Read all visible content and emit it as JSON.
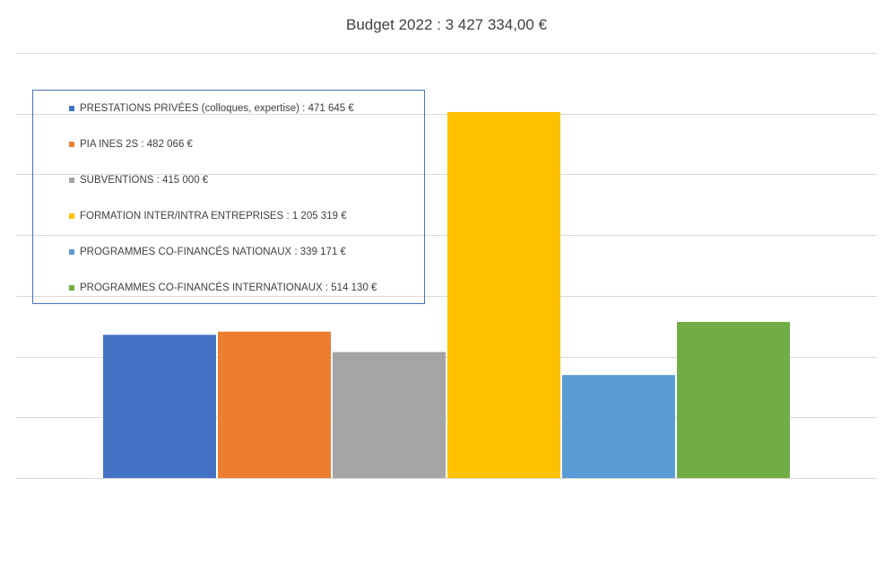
{
  "chart_data": {
    "type": "bar",
    "title": "Budget 2022 : 3 427 334,00 €",
    "xlabel": "",
    "ylabel": "",
    "ylim": [
      0,
      1400000
    ],
    "grid": true,
    "legend_position": "top-left",
    "series": [
      {
        "name": "PRESTATIONS PRIVÉES (colloques, expertise) : 471 645 €",
        "value": 471645,
        "color": "#4472c4"
      },
      {
        "name": "PIA INES 2S : 482 066 €",
        "value": 482066,
        "color": "#ed7d31"
      },
      {
        "name": "SUBVENTIONS : 415 000 €",
        "value": 415000,
        "color": "#a5a5a5"
      },
      {
        "name": "FORMATION INTER/INTRA ENTREPRISES : 1 205 319 €",
        "value": 1205319,
        "color": "#ffc000"
      },
      {
        "name": "PROGRAMMES CO-FINANCÉS NATIONAUX : 339 171 €",
        "value": 339171,
        "color": "#5b9bd5"
      },
      {
        "name": "PROGRAMMES CO-FINANCÉS INTERNATIONAUX : 514 130 €",
        "value": 514130,
        "color": "#70ad47"
      }
    ]
  }
}
